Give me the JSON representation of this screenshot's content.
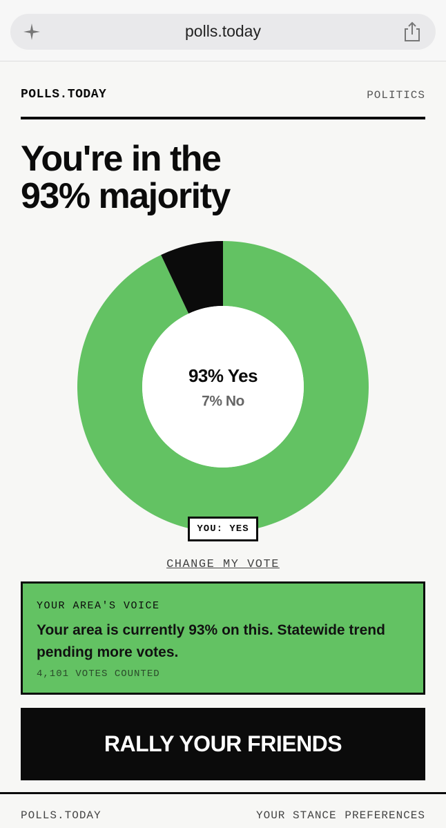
{
  "browser": {
    "url": "polls.today"
  },
  "header": {
    "brand": "POLLS.TODAY",
    "section": "POLITICS"
  },
  "headline": "You're in the 93% majority",
  "chart_data": {
    "type": "donut",
    "values": [
      93,
      7
    ],
    "value_labels": [
      "93% Yes",
      "7% No"
    ],
    "colors": [
      "#63c263",
      "#0b0b0b"
    ]
  },
  "badge": "YOU: YES",
  "change_vote": "CHANGE MY VOTE",
  "area": {
    "label": "YOUR AREA'S VOICE",
    "text": "Your area is currently 93% on this. Statewide trend pending more votes.",
    "count": "4,101 VOTES COUNTED"
  },
  "cta": "RALLY YOUR FRIENDS",
  "footer": {
    "brand": "POLLS.TODAY",
    "links": [
      "YOUR STANCE",
      "PREFERENCES"
    ]
  }
}
